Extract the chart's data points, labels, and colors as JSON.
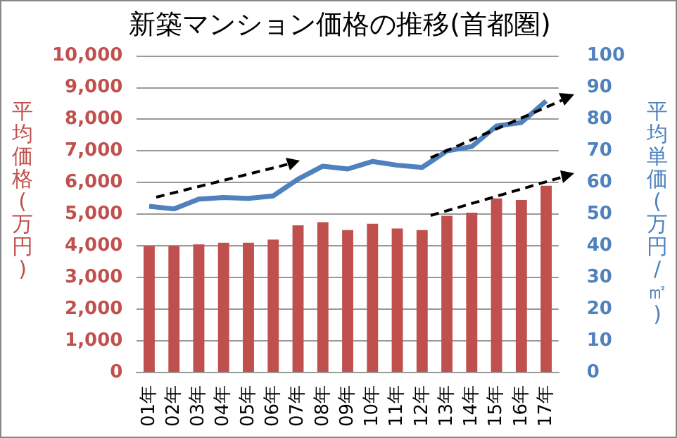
{
  "chart_data": {
    "type": "bar",
    "title": "新築マンション価格の推移(首都圏)",
    "ylabel": "平均価格(万円)",
    "y2label": "平均単価(万円/㎡)",
    "categories": [
      "01年",
      "02年",
      "03年",
      "04年",
      "05年",
      "06年",
      "07年",
      "08年",
      "09年",
      "10年",
      "11年",
      "12年",
      "13年",
      "14年",
      "15年",
      "16年",
      "17年"
    ],
    "series": [
      {
        "color": "#c0504d",
        "values": [
          4000,
          4000,
          4050,
          4100,
          4100,
          4200,
          4650,
          4750,
          4500,
          4700,
          4550,
          4500,
          4950,
          5050,
          5500,
          5450,
          5900
        ]
      },
      {
        "type": "line",
        "axis": "y2",
        "color": "#4f81bd",
        "values": [
          52.5,
          51.7,
          54.8,
          55.3,
          55,
          55.8,
          61.1,
          65.2,
          64.3,
          66.7,
          65.5,
          64.8,
          70,
          71.4,
          77.9,
          79,
          85.8
        ]
      }
    ],
    "ylim": [
      0,
      10000
    ],
    "yticks": [
      {
        "value": 0,
        "label": "0"
      },
      {
        "value": 1000,
        "label": "1,000"
      },
      {
        "value": 2000,
        "label": "2,000"
      },
      {
        "value": 3000,
        "label": "3,000"
      },
      {
        "value": 4000,
        "label": "4,000"
      },
      {
        "value": 5000,
        "label": "5,000"
      },
      {
        "value": 6000,
        "label": "6,000"
      },
      {
        "value": 7000,
        "label": "7,000"
      },
      {
        "value": 8000,
        "label": "8,000"
      },
      {
        "value": 9000,
        "label": "9,000"
      },
      {
        "value": 10000,
        "label": "10,000"
      }
    ],
    "y2lim": [
      0,
      100
    ],
    "y2ticks": [
      0,
      10,
      20,
      30,
      40,
      50,
      60,
      70,
      80,
      90,
      100
    ],
    "grid": "y",
    "legend": false
  }
}
